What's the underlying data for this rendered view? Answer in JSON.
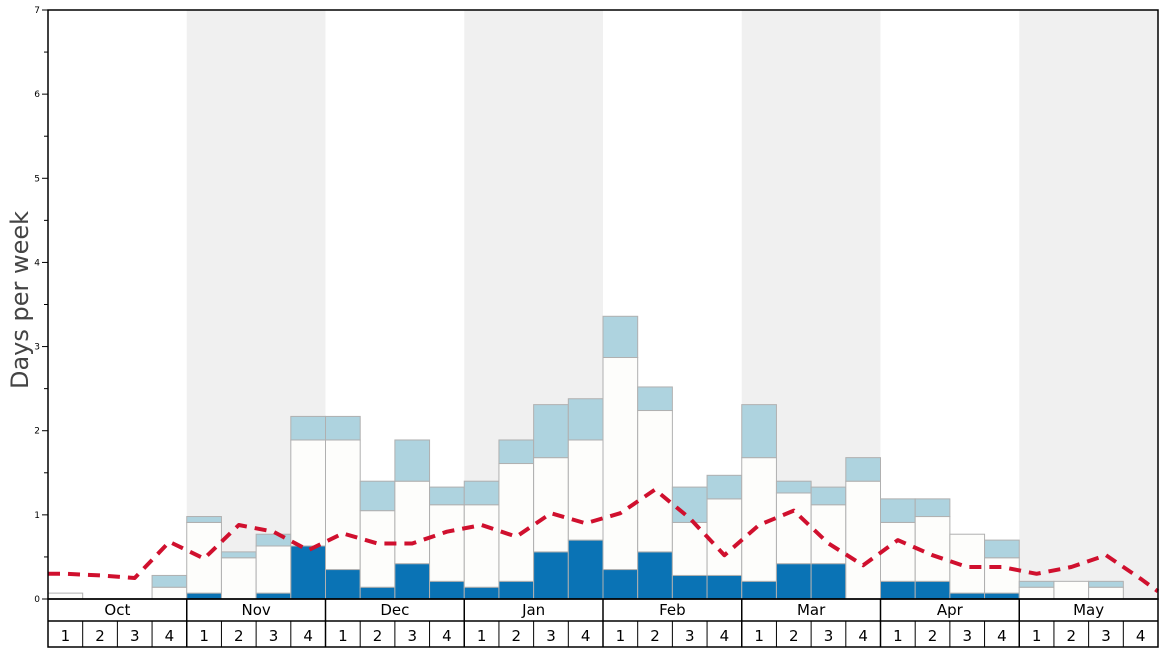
{
  "chart_data": {
    "type": "bar",
    "ylabel": "Days per week",
    "ylim": [
      0,
      7
    ],
    "y_ticks": [
      "0",
      "1",
      "2",
      "3",
      "4",
      "5",
      "6",
      "7"
    ],
    "months": [
      "Oct",
      "Nov",
      "Dec",
      "Jan",
      "Feb",
      "Mar",
      "Apr",
      "May"
    ],
    "weeks": [
      "1",
      "2",
      "3",
      "4"
    ],
    "stack_order": [
      "dark",
      "white",
      "light"
    ],
    "colors": {
      "dark": "#0a73b5",
      "white": "#fdfdfb",
      "light": "#aed3df",
      "line": "#d0102e",
      "band": "#f0f0f0",
      "edge": "#b0b0b0"
    },
    "series": [
      {
        "key": "dark",
        "values": [
          0,
          0,
          0,
          0,
          0.07,
          0,
          0.07,
          0.63,
          0.35,
          0.14,
          0.42,
          0.21,
          0.14,
          0.21,
          0.56,
          0.7,
          0.35,
          0.56,
          0.28,
          0.28,
          0.21,
          0.42,
          0.42,
          0,
          0.21,
          0.21,
          0.07,
          0.07,
          0,
          0,
          0,
          0
        ]
      },
      {
        "key": "white",
        "values": [
          0.07,
          0,
          0,
          0.14,
          0.84,
          0.49,
          0.56,
          1.26,
          1.54,
          0.91,
          0.98,
          0.91,
          0.98,
          1.4,
          1.12,
          1.19,
          2.52,
          1.68,
          0.63,
          0.91,
          1.47,
          0.84,
          0.7,
          1.4,
          0.7,
          0.77,
          0.7,
          0.42,
          0.14,
          0.21,
          0.14,
          0
        ]
      },
      {
        "key": "light",
        "values": [
          0,
          0,
          0,
          0.14,
          0.07,
          0.07,
          0.14,
          0.28,
          0.28,
          0.35,
          0.49,
          0.21,
          0.28,
          0.28,
          0.63,
          0.49,
          0.49,
          0.28,
          0.42,
          0.28,
          0.63,
          0.14,
          0.21,
          0.28,
          0.28,
          0.21,
          0,
          0.21,
          0.07,
          0,
          0.07,
          0
        ]
      },
      {
        "key": "line",
        "values": [
          0.3,
          0.28,
          0.25,
          0.68,
          0.48,
          0.88,
          0.8,
          0.58,
          0.78,
          0.66,
          0.66,
          0.8,
          0.88,
          0.74,
          1.02,
          0.9,
          1.02,
          1.3,
          0.96,
          0.52,
          0.88,
          1.05,
          0.66,
          0.4,
          0.7,
          0.52,
          0.38,
          0.38,
          0.3,
          0.38,
          0.52,
          0.24
        ]
      }
    ]
  }
}
